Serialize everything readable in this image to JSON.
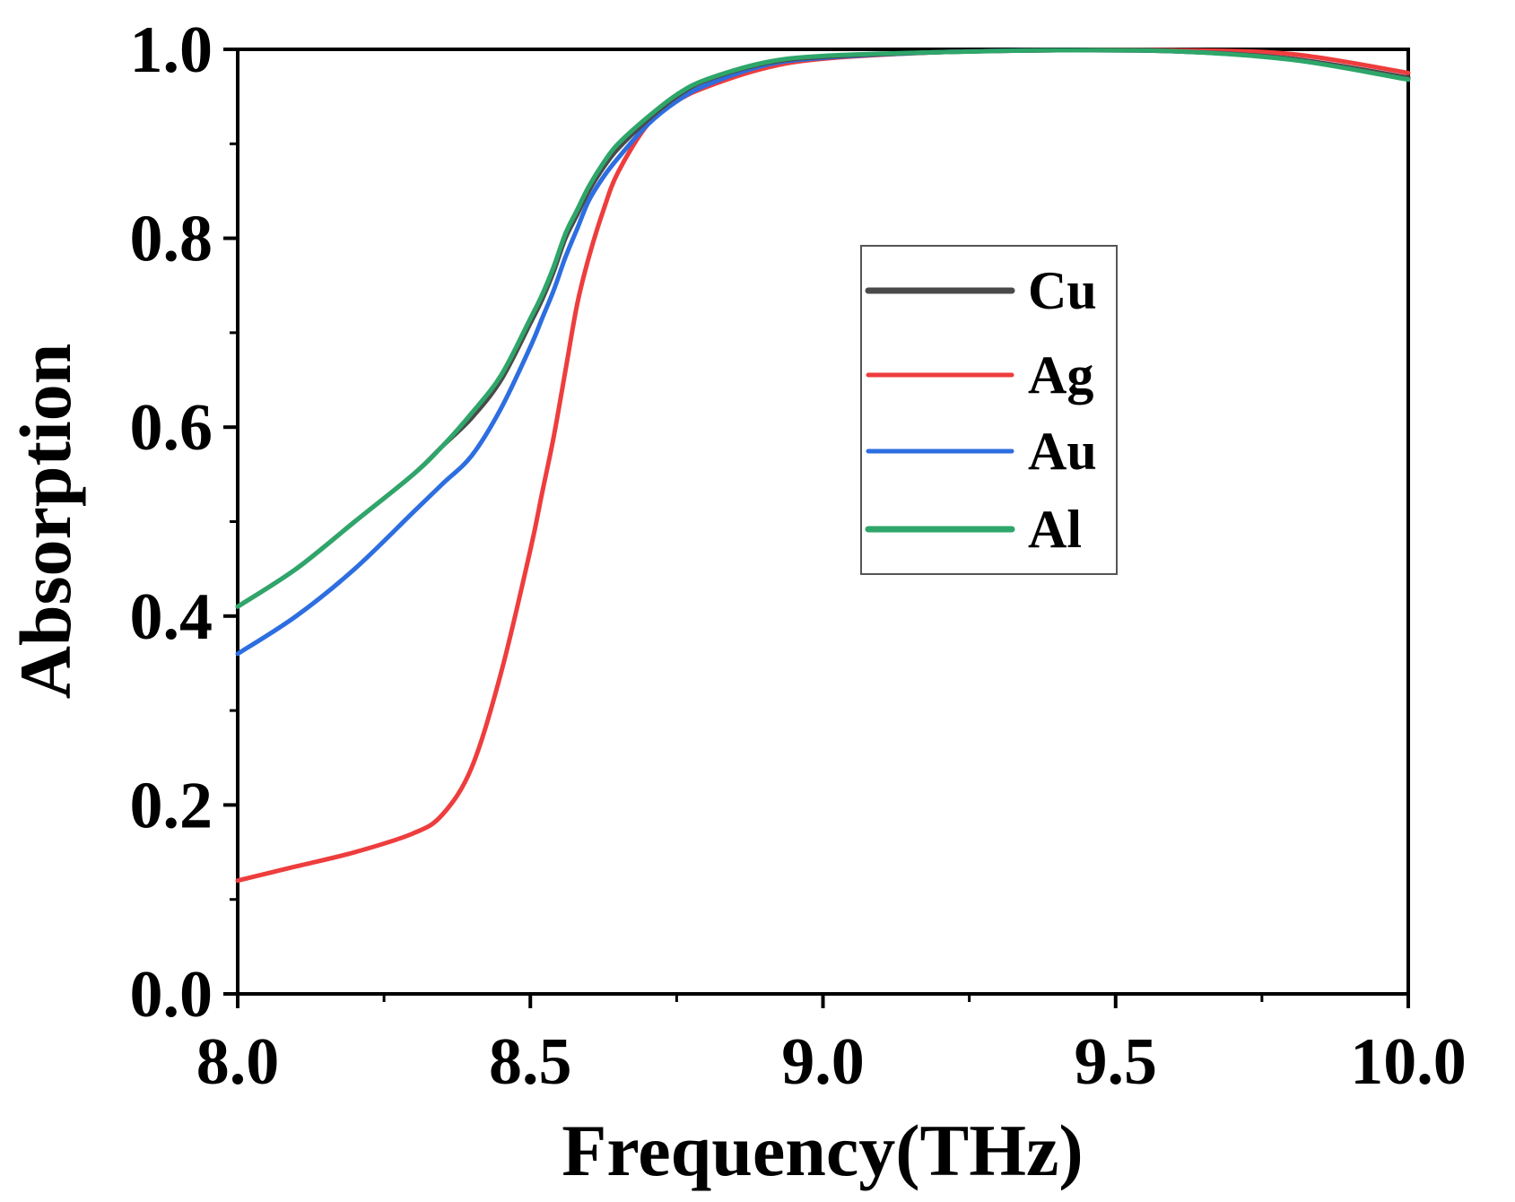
{
  "chart_data": {
    "type": "line",
    "title": "",
    "xlabel": "Frequency(THz)",
    "ylabel": "Absorption",
    "xlim": [
      8.0,
      10.0
    ],
    "ylim": [
      0.0,
      1.0
    ],
    "x_ticks": [
      "8.0",
      "8.5",
      "9.0",
      "9.5",
      "10.0"
    ],
    "y_ticks": [
      "0.0",
      "0.2",
      "0.4",
      "0.6",
      "0.8",
      "1.0"
    ],
    "grid": false,
    "legend_position": "center-right",
    "x": [
      8.0,
      8.1,
      8.2,
      8.3,
      8.35,
      8.4,
      8.45,
      8.5,
      8.52,
      8.54,
      8.56,
      8.58,
      8.6,
      8.625,
      8.65,
      8.7,
      8.75,
      8.8,
      8.9,
      9.0,
      9.2,
      9.4,
      9.6,
      9.8,
      10.0
    ],
    "series": [
      {
        "name": "Cu",
        "color": "#4a4a4a",
        "values": [
          0.41,
          0.45,
          0.5,
          0.55,
          0.58,
          0.61,
          0.65,
          0.71,
          0.735,
          0.765,
          0.8,
          0.825,
          0.85,
          0.875,
          0.895,
          0.925,
          0.95,
          0.967,
          0.985,
          0.992,
          0.997,
          0.999,
          0.998,
          0.99,
          0.97
        ]
      },
      {
        "name": "Ag",
        "color": "#ee3d3d",
        "values": [
          0.12,
          0.135,
          0.15,
          0.17,
          0.19,
          0.24,
          0.34,
          0.47,
          0.53,
          0.59,
          0.66,
          0.73,
          0.78,
          0.83,
          0.87,
          0.92,
          0.945,
          0.96,
          0.98,
          0.99,
          0.997,
          0.999,
          0.999,
          0.995,
          0.975
        ]
      },
      {
        "name": "Au",
        "color": "#2d6ee0",
        "values": [
          0.36,
          0.4,
          0.45,
          0.51,
          0.54,
          0.57,
          0.62,
          0.685,
          0.715,
          0.745,
          0.78,
          0.81,
          0.84,
          0.865,
          0.885,
          0.92,
          0.945,
          0.962,
          0.983,
          0.991,
          0.997,
          0.999,
          0.998,
          0.99,
          0.97
        ]
      },
      {
        "name": "Al",
        "color": "#2ea66a",
        "values": [
          0.41,
          0.45,
          0.5,
          0.55,
          0.58,
          0.615,
          0.655,
          0.715,
          0.74,
          0.77,
          0.805,
          0.83,
          0.855,
          0.88,
          0.9,
          0.928,
          0.952,
          0.968,
          0.986,
          0.993,
          0.997,
          0.999,
          0.998,
          0.989,
          0.968
        ]
      }
    ]
  }
}
